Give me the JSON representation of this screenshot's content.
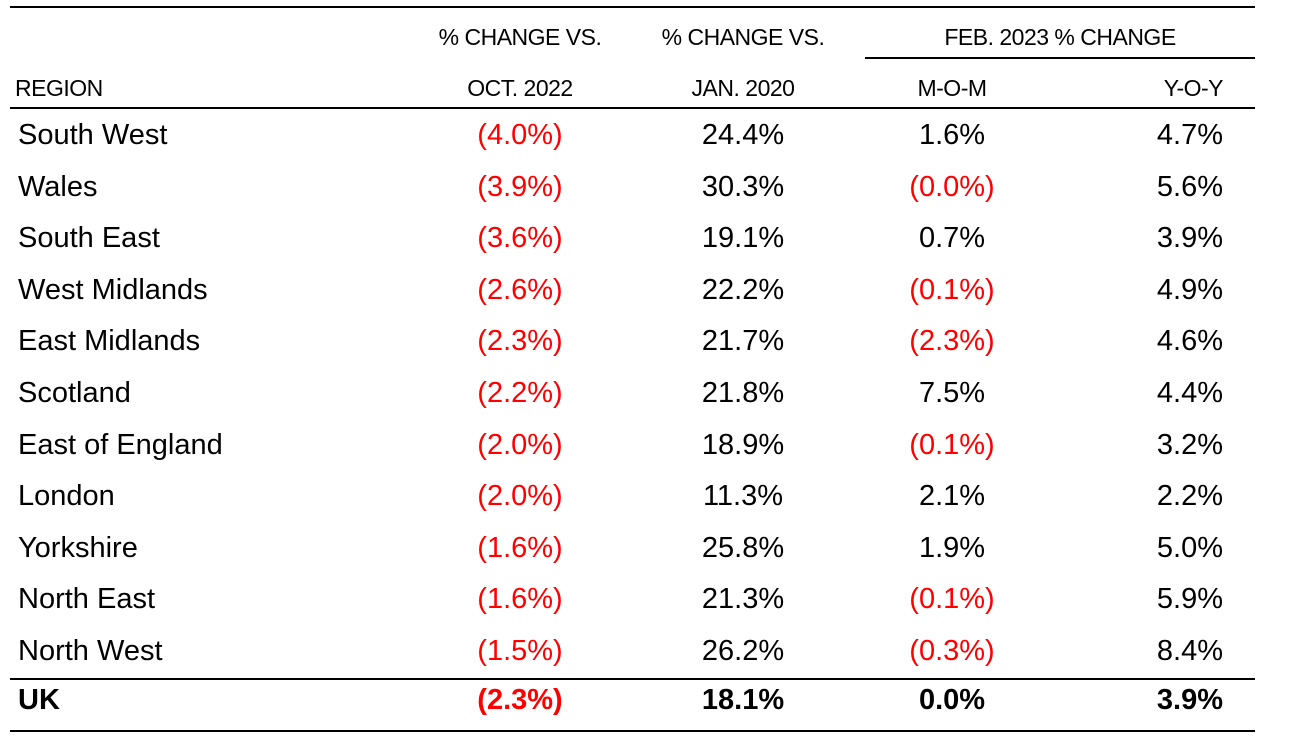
{
  "colors": {
    "negative": "#ff0000",
    "text": "#000000"
  },
  "header": {
    "col1_line1": "% CHANGE VS.",
    "col1_line2": "OCT. 2022",
    "col2_line1": "% CHANGE VS.",
    "col2_line2": "JAN. 2020",
    "group_label": "FEB. 2023 % CHANGE",
    "mom": "M-O-M",
    "yoy": "Y-O-Y",
    "region": "REGION"
  },
  "chart_data": {
    "type": "table",
    "columns": [
      "REGION",
      "% CHANGE VS. OCT. 2022",
      "% CHANGE VS. JAN. 2020",
      "FEB. 2023 % CHANGE M-O-M",
      "FEB. 2023 % CHANGE Y-O-Y"
    ],
    "rows": [
      {
        "region": "South West",
        "vs_oct": "(4.0%)",
        "vs_jan": "24.4%",
        "mom": "1.6%",
        "yoy": "4.7%"
      },
      {
        "region": "Wales",
        "vs_oct": "(3.9%)",
        "vs_jan": "30.3%",
        "mom": "(0.0%)",
        "yoy": "5.6%"
      },
      {
        "region": "South East",
        "vs_oct": "(3.6%)",
        "vs_jan": "19.1%",
        "mom": "0.7%",
        "yoy": "3.9%"
      },
      {
        "region": "West Midlands",
        "vs_oct": "(2.6%)",
        "vs_jan": "22.2%",
        "mom": "(0.1%)",
        "yoy": "4.9%"
      },
      {
        "region": "East Midlands",
        "vs_oct": "(2.3%)",
        "vs_jan": "21.7%",
        "mom": "(2.3%)",
        "yoy": "4.6%"
      },
      {
        "region": "Scotland",
        "vs_oct": "(2.2%)",
        "vs_jan": "21.8%",
        "mom": "7.5%",
        "yoy": "4.4%"
      },
      {
        "region": "East of England",
        "vs_oct": "(2.0%)",
        "vs_jan": "18.9%",
        "mom": "(0.1%)",
        "yoy": "3.2%"
      },
      {
        "region": "London",
        "vs_oct": "(2.0%)",
        "vs_jan": "11.3%",
        "mom": "2.1%",
        "yoy": "2.2%"
      },
      {
        "region": "Yorkshire",
        "vs_oct": "(1.6%)",
        "vs_jan": "25.8%",
        "mom": "1.9%",
        "yoy": "5.0%"
      },
      {
        "region": "North East",
        "vs_oct": "(1.6%)",
        "vs_jan": "21.3%",
        "mom": "(0.1%)",
        "yoy": "5.9%"
      },
      {
        "region": "North West",
        "vs_oct": "(1.5%)",
        "vs_jan": "26.2%",
        "mom": "(0.3%)",
        "yoy": "8.4%"
      }
    ],
    "total": {
      "region": "UK",
      "vs_oct": "(2.3%)",
      "vs_jan": "18.1%",
      "mom": "0.0%",
      "yoy": "3.9%"
    }
  }
}
